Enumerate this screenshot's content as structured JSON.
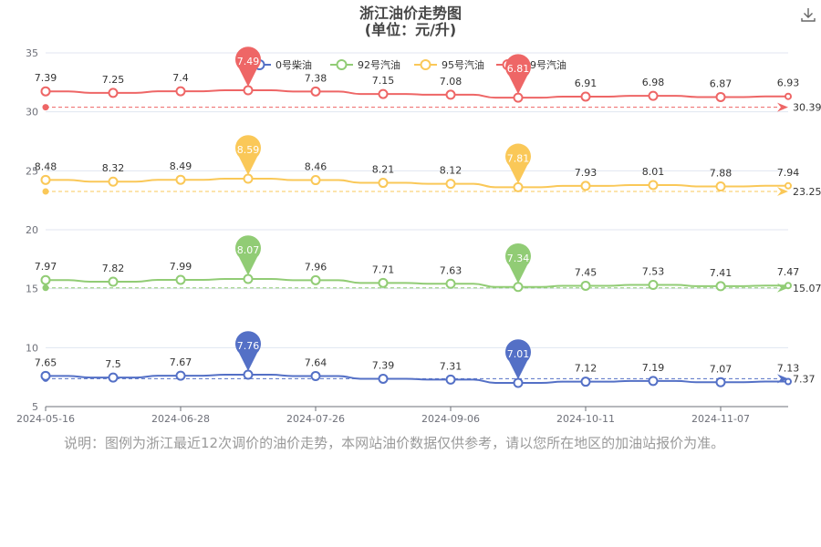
{
  "chart_data": {
    "type": "line",
    "title": "浙江油价走势图",
    "subtitle": "(单位：元/升)",
    "x_tick_labels": [
      "2024-05-16",
      "2024-06-28",
      "2024-07-26",
      "2024-09-06",
      "2024-10-11",
      "2024-11-07"
    ],
    "y_ticks": [
      5,
      10,
      15,
      20,
      25,
      30,
      35
    ],
    "ylim": [
      5,
      35
    ],
    "legend_position": "top",
    "series": [
      {
        "name": "0号柴油",
        "color": "#5470c6",
        "values": [
          7.65,
          7.5,
          7.67,
          7.76,
          7.64,
          7.39,
          7.31,
          7.01,
          7.12,
          7.19,
          7.07,
          7.13
        ],
        "max_label": "7.76",
        "min_label": "7.01",
        "average_value": 7.37,
        "average_label": "7.37",
        "start_label": "7.65",
        "end_label": "7.13"
      },
      {
        "name": "92号汽油",
        "color": "#91cc75",
        "values": [
          7.97,
          7.82,
          7.99,
          8.07,
          7.96,
          7.71,
          7.63,
          7.34,
          7.45,
          7.53,
          7.41,
          7.47
        ],
        "max_label": "8.07",
        "min_label": "7.34",
        "average_value": 15.07,
        "average_label": "15.07",
        "start_label": "7.97",
        "end_label": "7.47"
      },
      {
        "name": "95号汽油",
        "color": "#fac858",
        "values": [
          8.48,
          8.32,
          8.49,
          8.59,
          8.46,
          8.21,
          8.12,
          7.81,
          7.93,
          8.01,
          7.88,
          7.94
        ],
        "max_label": "8.59",
        "min_label": "7.81",
        "average_value": 23.25,
        "average_label": "23.25",
        "start_label": "8.48",
        "end_label": "7.94"
      },
      {
        "name": "89号汽油",
        "color": "#ee6666",
        "values": [
          7.39,
          7.25,
          7.4,
          7.49,
          7.38,
          7.15,
          7.08,
          6.81,
          6.91,
          6.98,
          6.87,
          6.93
        ],
        "max_label": "7.49",
        "min_label": "6.81",
        "average_value": 30.39,
        "average_label": "30.39",
        "start_label": "7.39",
        "end_label": "6.93"
      }
    ]
  },
  "note": "说明：图例为浙江最近12次调价的油价走势，本网站油价数据仅供参考，请以您所在地区的加油站报价为准。",
  "icons": {
    "download": "download-icon"
  }
}
